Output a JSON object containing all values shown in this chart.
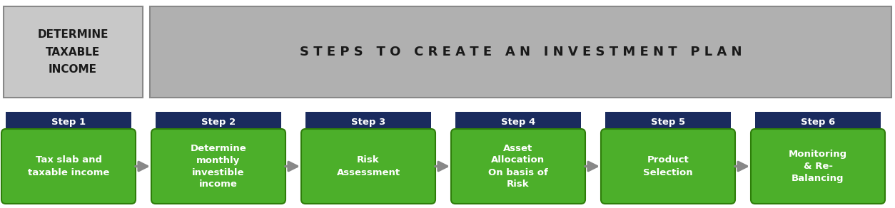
{
  "title_left": "DETERMINE\nTAXABLE\nINCOME",
  "title_right": "S T E P S   T O   C R E A T E   A N   I N V E S T M E N T   P L A N",
  "header_bg_left": "#c8c8c8",
  "header_bg_right": "#b0b0b0",
  "header_border": "#888888",
  "step_labels": [
    "Step 1",
    "Step 2",
    "Step 3",
    "Step 4",
    "Step 5",
    "Step 6"
  ],
  "step_contents": [
    "Tax slab and\ntaxable income",
    "Determine\nmonthly\ninvestible\nincome",
    "Risk\nAssessment",
    "Asset\nAllocation\nOn basis of\nRisk",
    "Product\nSelection",
    "Monitoring\n& Re-\nBalancing"
  ],
  "step_header_color": "#1a2b5e",
  "step_box_color": "#4caf2a",
  "step_box_border": "#2e7d0a",
  "arrow_color": "#888888",
  "text_color_white": "#ffffff",
  "text_color_dark": "#1a1a1a",
  "bg_color": "#ffffff",
  "fig_width": 12.54,
  "fig_height": 2.92
}
